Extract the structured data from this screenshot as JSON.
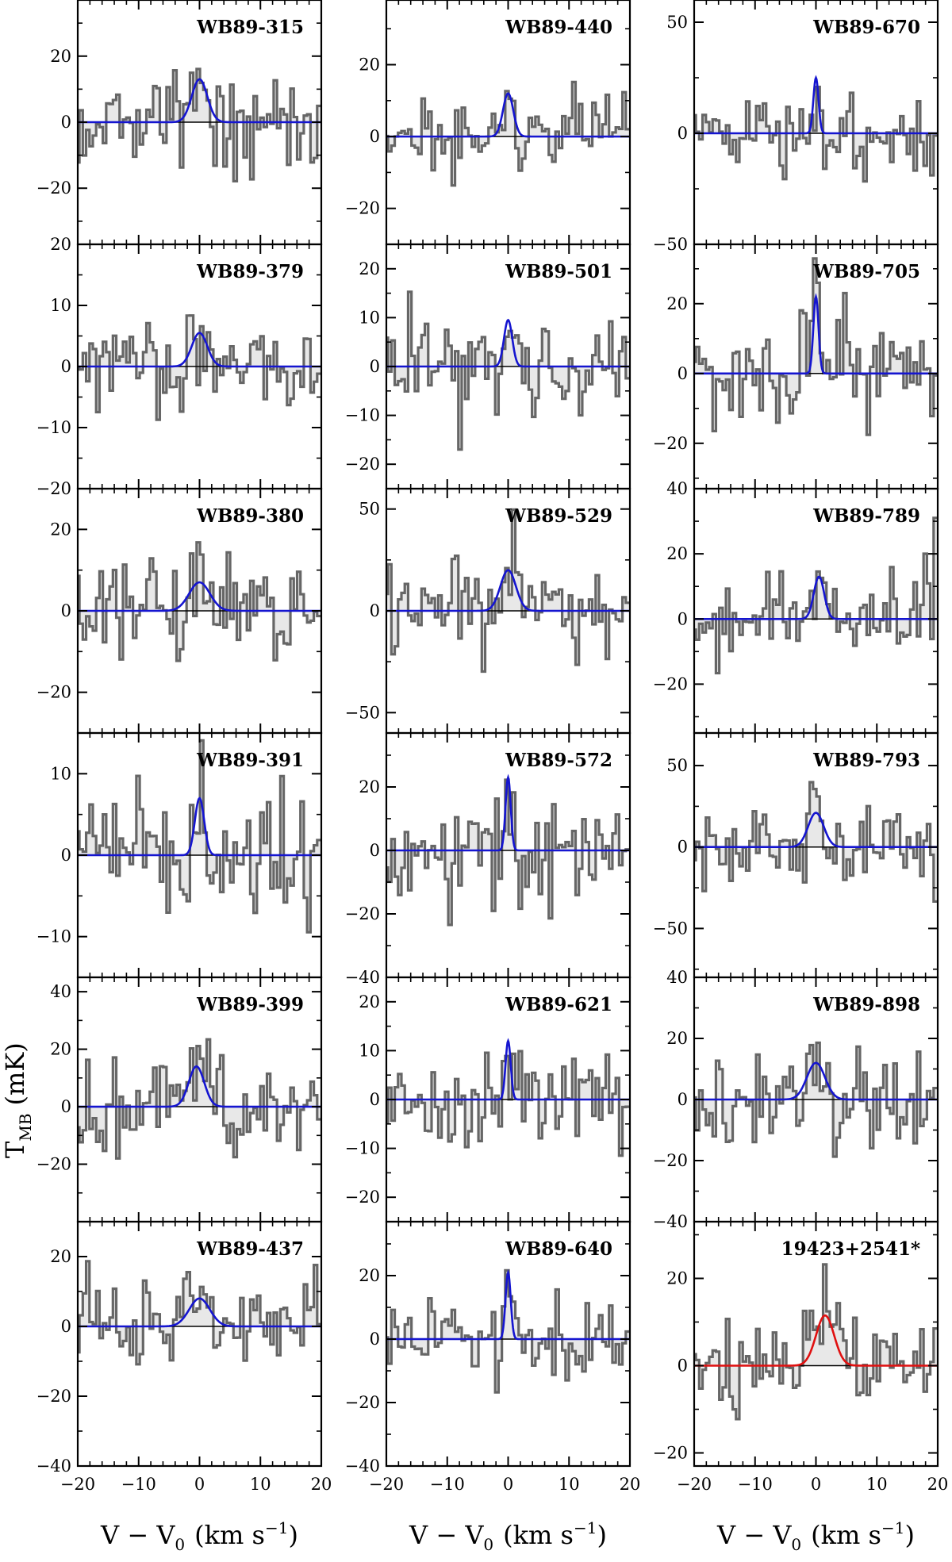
{
  "figure": {
    "ylabel_main": "T",
    "ylabel_sub": "MB",
    "ylabel_unit": "(mK)",
    "xlabel_main": "V − V",
    "xlabel_sub": "0",
    "xlabel_unit": "(km s",
    "xlabel_sup": "−1",
    "xlabel_close": ")"
  },
  "colors": {
    "spectrum": "#666666",
    "fill": "#e8e8e8",
    "fit_default": "#1515d0",
    "fit_highlight": "#e01010",
    "zero_line": "#000000"
  },
  "chart_data": [
    {
      "type": "line",
      "name": "WB89-315",
      "xlim": [
        -20,
        20
      ],
      "ylim": [
        -37,
        37
      ],
      "yticks": [
        -20,
        0,
        20
      ],
      "fit": {
        "amp": 13,
        "center": 0,
        "fwhm": 3.0,
        "color": "fit_default"
      },
      "noise": 10
    },
    {
      "type": "line",
      "name": "WB89-379",
      "xlim": [
        -20,
        20
      ],
      "ylim": [
        -20,
        20
      ],
      "yticks": [
        -20,
        -10,
        0,
        10,
        20
      ],
      "fit": {
        "amp": 5.5,
        "center": 0,
        "fwhm": 3.0,
        "color": "fit_default"
      },
      "noise": 5
    },
    {
      "type": "line",
      "name": "WB89-380",
      "xlim": [
        -20,
        20
      ],
      "ylim": [
        -30,
        30
      ],
      "yticks": [
        -20,
        0,
        20
      ],
      "fit": {
        "amp": 7,
        "center": 0,
        "fwhm": 4.0,
        "color": "fit_default"
      },
      "noise": 8
    },
    {
      "type": "line",
      "name": "WB89-391",
      "xlim": [
        -20,
        20
      ],
      "ylim": [
        -15,
        15
      ],
      "yticks": [
        -10,
        0,
        10
      ],
      "fit": {
        "amp": 7,
        "center": 0,
        "fwhm": 1.8,
        "color": "fit_default"
      },
      "noise": 4.5
    },
    {
      "type": "line",
      "name": "WB89-399",
      "xlim": [
        -20,
        20
      ],
      "ylim": [
        -40,
        45
      ],
      "yticks": [
        -20,
        0,
        20,
        40
      ],
      "fit": {
        "amp": 14,
        "center": -0.5,
        "fwhm": 3.0,
        "color": "fit_default"
      },
      "noise": 12
    },
    {
      "type": "line",
      "name": "WB89-437",
      "xlim": [
        -20,
        20
      ],
      "ylim": [
        -40,
        30
      ],
      "yticks": [
        -40,
        -20,
        0,
        20
      ],
      "fit": {
        "amp": 8,
        "center": 0,
        "fwhm": 4.0,
        "color": "fit_default"
      },
      "noise": 8
    },
    {
      "type": "line",
      "name": "WB89-440",
      "xlim": [
        -20,
        20
      ],
      "ylim": [
        -30,
        38
      ],
      "yticks": [
        -20,
        0,
        20
      ],
      "fit": {
        "amp": 12,
        "center": 0,
        "fwhm": 2.0,
        "color": "fit_default"
      },
      "noise": 9
    },
    {
      "type": "line",
      "name": "WB89-501",
      "xlim": [
        -20,
        20
      ],
      "ylim": [
        -25,
        25
      ],
      "yticks": [
        -20,
        -10,
        0,
        10,
        20
      ],
      "fit": {
        "amp": 9.5,
        "center": 0,
        "fwhm": 1.6,
        "color": "fit_default"
      },
      "noise": 7
    },
    {
      "type": "line",
      "name": "WB89-529",
      "xlim": [
        -20,
        20
      ],
      "ylim": [
        -60,
        60
      ],
      "yticks": [
        -50,
        0,
        50
      ],
      "fit": {
        "amp": 20,
        "center": 0,
        "fwhm": 3.0,
        "color": "fit_default"
      },
      "noise": 18
    },
    {
      "type": "line",
      "name": "WB89-572",
      "xlim": [
        -20,
        20
      ],
      "ylim": [
        -40,
        37
      ],
      "yticks": [
        -40,
        -20,
        0,
        20
      ],
      "fit": {
        "amp": 23,
        "center": 0,
        "fwhm": 1.0,
        "color": "fit_default"
      },
      "noise": 11
    },
    {
      "type": "line",
      "name": "WB89-621",
      "xlim": [
        -20,
        20
      ],
      "ylim": [
        -25,
        25
      ],
      "yticks": [
        -20,
        -10,
        0,
        10,
        20
      ],
      "fit": {
        "amp": 12,
        "center": 0,
        "fwhm": 1.0,
        "color": "fit_default"
      },
      "noise": 7
    },
    {
      "type": "line",
      "name": "WB89-640",
      "xlim": [
        -20,
        20
      ],
      "ylim": [
        -40,
        37
      ],
      "yticks": [
        -40,
        -20,
        0,
        20
      ],
      "fit": {
        "amp": 21,
        "center": 0,
        "fwhm": 1.0,
        "color": "fit_default"
      },
      "noise": 11
    },
    {
      "type": "line",
      "name": "WB89-670",
      "xlim": [
        -20,
        20
      ],
      "ylim": [
        -50,
        60
      ],
      "yticks": [
        -50,
        0,
        50
      ],
      "fit": {
        "amp": 25,
        "center": 0,
        "fwhm": 1.0,
        "color": "fit_default"
      },
      "noise": 13
    },
    {
      "type": "line",
      "name": "WB89-705",
      "xlim": [
        -20,
        20
      ],
      "ylim": [
        -33,
        37
      ],
      "yticks": [
        -20,
        0,
        20
      ],
      "fit": {
        "amp": 22,
        "center": 0,
        "fwhm": 1.0,
        "color": "fit_default"
      },
      "noise": 11
    },
    {
      "type": "line",
      "name": "WB89-789",
      "xlim": [
        -20,
        20
      ],
      "ylim": [
        -35,
        40
      ],
      "yticks": [
        -20,
        0,
        20,
        40
      ],
      "fit": {
        "amp": 13,
        "center": 0.5,
        "fwhm": 2.0,
        "color": "fit_default"
      },
      "noise": 9
    },
    {
      "type": "line",
      "name": "WB89-793",
      "xlim": [
        -20,
        20
      ],
      "ylim": [
        -80,
        70
      ],
      "yticks": [
        -50,
        0,
        50
      ],
      "fit": {
        "amp": 21,
        "center": 0,
        "fwhm": 3.0,
        "color": "fit_default"
      },
      "noise": 18
    },
    {
      "type": "line",
      "name": "WB89-898",
      "xlim": [
        -20,
        20
      ],
      "ylim": [
        -40,
        40
      ],
      "yticks": [
        -40,
        -20,
        0,
        20,
        40
      ],
      "fit": {
        "amp": 12,
        "center": 0,
        "fwhm": 3.5,
        "color": "fit_default"
      },
      "noise": 12
    },
    {
      "type": "line",
      "name": "19423+2541*",
      "xlim": [
        -20,
        20
      ],
      "ylim": [
        -23,
        33
      ],
      "yticks": [
        -20,
        0,
        20
      ],
      "fit": {
        "amp": 11.5,
        "center": 1.5,
        "fwhm": 3.5,
        "color": "fit_highlight"
      },
      "noise": 7
    }
  ],
  "xaxis": {
    "ticks": [
      -20,
      -10,
      0,
      10,
      20
    ],
    "tick_labels": [
      "−20",
      "−10",
      "0",
      "10",
      "20"
    ]
  }
}
